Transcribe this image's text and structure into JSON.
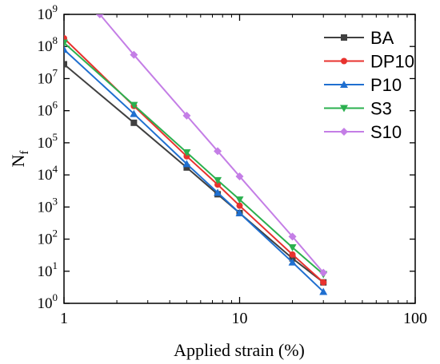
{
  "chart_data": {
    "type": "line",
    "xlabel": "Applied strain (%)",
    "ylabel_main": "N",
    "ylabel_sub": "f",
    "x_scale": "log",
    "y_scale": "log",
    "xlim": [
      1,
      100
    ],
    "ylim": [
      1,
      1000000000
    ],
    "x_ticks": [
      {
        "value": 1,
        "label": "1"
      },
      {
        "value": 10,
        "label": "10"
      },
      {
        "value": 100,
        "label": "100"
      }
    ],
    "y_ticks": [
      {
        "value": 1,
        "base": "10",
        "exp": "0"
      },
      {
        "value": 10,
        "base": "10",
        "exp": "1"
      },
      {
        "value": 100,
        "base": "10",
        "exp": "2"
      },
      {
        "value": 1000,
        "base": "10",
        "exp": "3"
      },
      {
        "value": 10000,
        "base": "10",
        "exp": "4"
      },
      {
        "value": 100000,
        "base": "10",
        "exp": "5"
      },
      {
        "value": 1000000,
        "base": "10",
        "exp": "6"
      },
      {
        "value": 10000000,
        "base": "10",
        "exp": "7"
      },
      {
        "value": 100000000,
        "base": "10",
        "exp": "8"
      },
      {
        "value": 1000000000,
        "base": "10",
        "exp": "9"
      }
    ],
    "legend_position": "top-right",
    "grid": false,
    "series": [
      {
        "name": "BA",
        "color": "#404040",
        "marker": "square",
        "x": [
          1,
          2.5,
          5,
          7.5,
          10,
          20,
          30
        ],
        "y": [
          28000000,
          420000,
          17000,
          2500,
          650,
          25,
          4.5
        ]
      },
      {
        "name": "DP10",
        "color": "#e8322e",
        "marker": "circle",
        "x": [
          1,
          2.5,
          5,
          7.5,
          10,
          20,
          30
        ],
        "y": [
          180000000,
          1400000,
          38000,
          5000,
          1100,
          33,
          4.5
        ]
      },
      {
        "name": "P10",
        "color": "#1f6fd0",
        "marker": "triangle-up",
        "x": [
          1,
          2.5,
          5,
          7.5,
          10,
          20,
          30
        ],
        "y": [
          80000000,
          800000,
          22000,
          2800,
          650,
          19,
          2.3
        ]
      },
      {
        "name": "S3",
        "color": "#2bb04f",
        "marker": "triangle-down",
        "x": [
          1,
          2.5,
          5,
          7.5,
          10,
          20,
          30
        ],
        "y": [
          130000000,
          1500000,
          50000,
          6800,
          1700,
          55,
          8
        ]
      },
      {
        "name": "S10",
        "color": "#c47ee6",
        "marker": "diamond",
        "x": [
          1.6,
          2.5,
          5,
          7.5,
          10,
          20,
          30
        ],
        "y": [
          1000000000,
          55000000,
          700000,
          55000,
          9000,
          120,
          9
        ]
      }
    ]
  }
}
